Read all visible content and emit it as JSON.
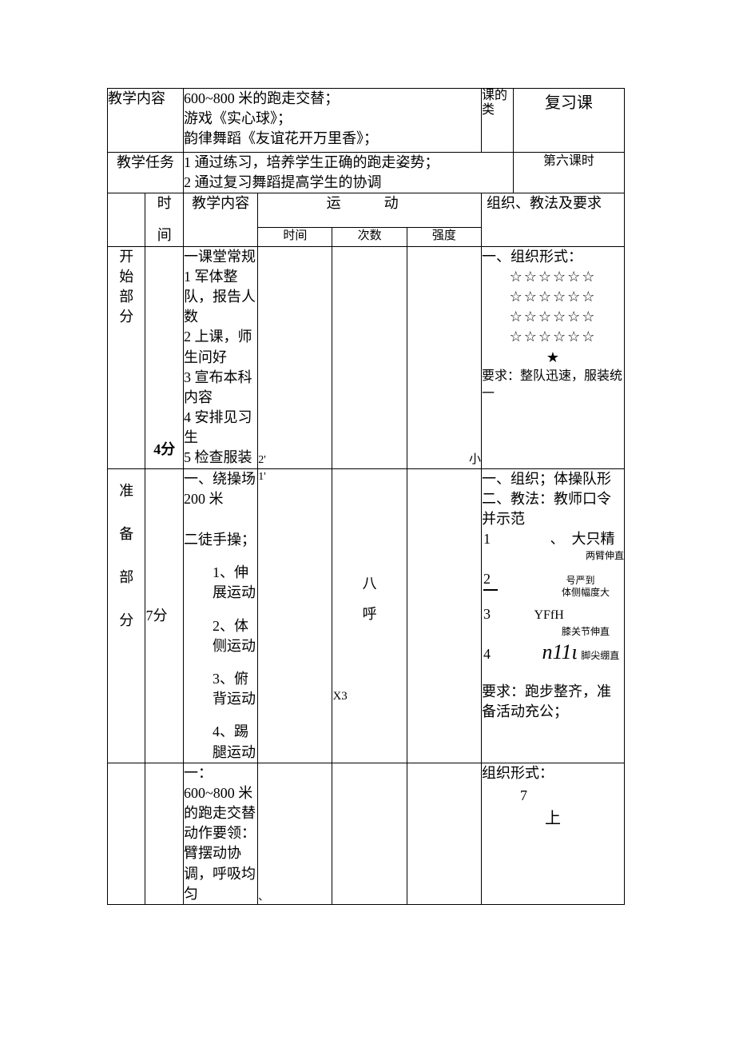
{
  "header": {
    "label_content": "教学内容",
    "content_lines": [
      "600~800 米的跑走交替；",
      "游戏《实心球》；",
      "韵律舞蹈《友谊花开万里香》；"
    ],
    "label_class": "课的类",
    "class_value": "复习课",
    "label_task": "教学任务",
    "task_lines": [
      "1 通过练习，培养学生正确的跑走姿势；",
      "2 通过复习舞蹈提高学生的协调"
    ],
    "lesson_no": "第六课时"
  },
  "subheader": {
    "col_time": "时",
    "col_time2": "间",
    "col_content": "教学内容",
    "col_movement": "运　动",
    "col_t": "时间",
    "col_count": "次数",
    "col_strength": "强度",
    "col_org": "组织、教法及要求"
  },
  "section_start": {
    "phase": "开始部分",
    "time": "4分",
    "content": {
      "title": "一课堂常规",
      "items": [
        "1 军体整队，报告人数",
        "2 上课，师生问好",
        "3 宣布本科内容",
        "4 安排见习生",
        "5 检查服装"
      ]
    },
    "t_val": "2'",
    "s_val": "小",
    "org": {
      "title": "一、组织形式：",
      "stars_row": "☆☆☆☆☆☆",
      "solid_star": "★",
      "req": "要求：整队迅速，服装统一"
    }
  },
  "section_prep": {
    "phase": "准备部分",
    "time": "7分",
    "content": {
      "line1": "一、绕操场 200 米",
      "line2": "二徒手操；",
      "items": [
        "1、伸展运动",
        "2、体侧运动",
        "3、俯背运动",
        "4、踢腿运动"
      ]
    },
    "t_val": "1'",
    "count_lines": [
      "八",
      "呼",
      "X3"
    ],
    "org": {
      "line1": "一、组织；体操队形",
      "line2": "二、教法：教师口令并示范",
      "n1": "1",
      "n1_text": "、　大只精",
      "n1_sub": "两臂伸直",
      "n2": "2",
      "n2_text": "号严到",
      "n2_sub": "体侧幅度大",
      "n3": "3",
      "n3_text": "YFfH",
      "n3_sub": "膝关节伸直",
      "n4": "4",
      "n4_text": "n11ι",
      "n4_sub": "脚尖绷直",
      "req": "要求：跑步整齐，准备活动充公；"
    }
  },
  "section_main": {
    "content": {
      "title": "一：600~800 米的跑走交替",
      "line2": "动作要领：臂摆动协调，呼吸均匀"
    },
    "t_mark": "、",
    "org": {
      "title": "组织形式：",
      "char": "上"
    }
  },
  "page_number": "7"
}
